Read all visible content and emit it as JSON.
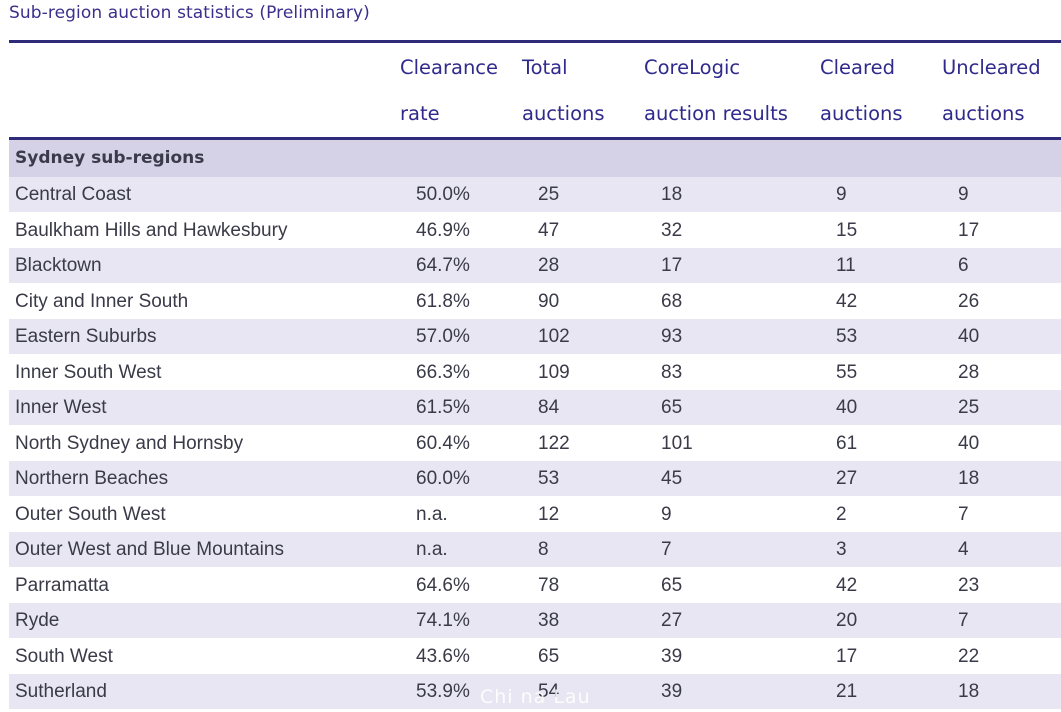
{
  "caption": "Sub-region auction statistics (Preliminary)",
  "headers": [
    {
      "line1": "",
      "line2": ""
    },
    {
      "line1": "Clearance",
      "line2": "rate"
    },
    {
      "line1": "Total",
      "line2": "auctions"
    },
    {
      "line1": "CoreLogic",
      "line2": "auction results"
    },
    {
      "line1": "Cleared",
      "line2": "auctions"
    },
    {
      "line1": "Uncleared",
      "line2": "auctions"
    }
  ],
  "section_title": "Sydney sub-regions",
  "rows": [
    [
      "Central Coast",
      "50.0%",
      "25",
      "18",
      "9",
      "9"
    ],
    [
      "Baulkham Hills and Hawkesbury",
      "46.9%",
      "47",
      "32",
      "15",
      "17"
    ],
    [
      "Blacktown",
      "64.7%",
      "28",
      "17",
      "11",
      "6"
    ],
    [
      "City and Inner South",
      "61.8%",
      "90",
      "68",
      "42",
      "26"
    ],
    [
      "Eastern Suburbs",
      "57.0%",
      "102",
      "93",
      "53",
      "40"
    ],
    [
      "Inner South West",
      "66.3%",
      "109",
      "83",
      "55",
      "28"
    ],
    [
      "Inner West",
      "61.5%",
      "84",
      "65",
      "40",
      "25"
    ],
    [
      "North Sydney and Hornsby",
      "60.4%",
      "122",
      "101",
      "61",
      "40"
    ],
    [
      "Northern Beaches",
      "60.0%",
      "53",
      "45",
      "27",
      "18"
    ],
    [
      "Outer South West",
      "n.a.",
      "12",
      "9",
      "2",
      "7"
    ],
    [
      "Outer West and Blue Mountains",
      "n.a.",
      "8",
      "7",
      "3",
      "4"
    ],
    [
      "Parramatta",
      "64.6%",
      "78",
      "65",
      "42",
      "23"
    ],
    [
      "Ryde",
      "74.1%",
      "38",
      "27",
      "20",
      "7"
    ],
    [
      "South West",
      "43.6%",
      "65",
      "39",
      "17",
      "22"
    ],
    [
      "Sutherland",
      "53.9%",
      "54",
      "39",
      "21",
      "18"
    ]
  ],
  "watermark": "Chi na Lau"
}
